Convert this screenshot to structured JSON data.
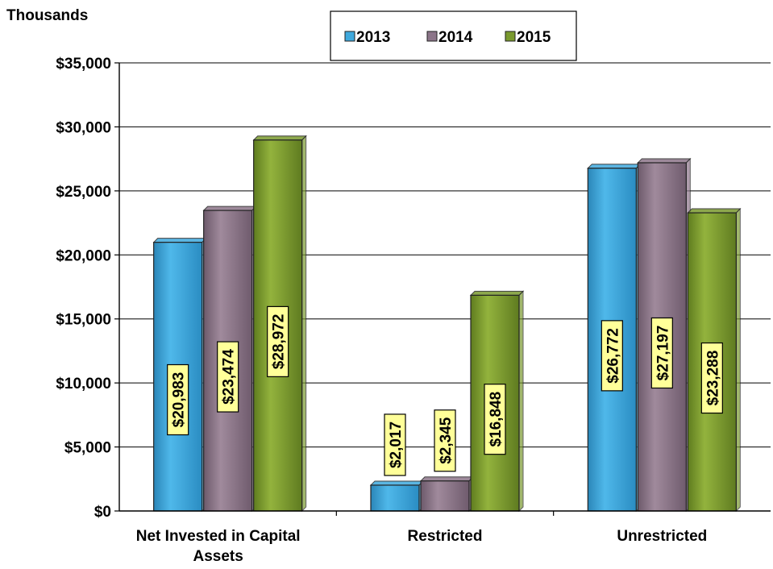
{
  "chart_data": {
    "type": "bar",
    "ylabel": "Thousands",
    "categories": [
      [
        "Net Invested in Capital",
        "Assets"
      ],
      [
        "Restricted"
      ],
      [
        "Unrestricted"
      ]
    ],
    "series": [
      {
        "name": "2013",
        "color": "#3fa9dd",
        "values": [
          20983,
          2017,
          26772
        ],
        "labels": [
          "$20,983",
          "$2,017",
          "$26,772"
        ]
      },
      {
        "name": "2014",
        "color": "#8c7589",
        "values": [
          23474,
          2345,
          27197
        ],
        "labels": [
          "$23,474",
          "$2,345",
          "$27,197"
        ]
      },
      {
        "name": "2015",
        "color": "#7a9a2e",
        "values": [
          28972,
          16848,
          23288
        ],
        "labels": [
          "$28,972",
          "$16,848",
          "$23,288"
        ]
      }
    ],
    "ylim": [
      0,
      35000
    ],
    "yticks": [
      0,
      5000,
      10000,
      15000,
      20000,
      25000,
      30000,
      35000
    ],
    "ytick_labels": [
      "$0",
      "$5,000",
      "$10,000",
      "$15,000",
      "$20,000",
      "$25,000",
      "$30,000",
      "$35,000"
    ],
    "grid": true,
    "legend_position": "top-center",
    "label_box_color": "#ffff99"
  }
}
